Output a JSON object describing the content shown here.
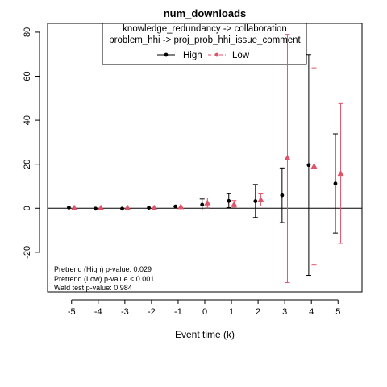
{
  "chart_data": {
    "type": "scatter",
    "title": "num_downloads",
    "xlabel": "Event time (k)",
    "ylabel": "",
    "xlim": [
      -5.9,
      5.9
    ],
    "ylim": [
      -38,
      84
    ],
    "x_ticks": [
      "-5",
      "-4",
      "-3",
      "-2",
      "-1",
      "0",
      "1",
      "2",
      "3",
      "4",
      "5"
    ],
    "y_ticks": [
      "-20",
      "0",
      "20",
      "40",
      "60",
      "80"
    ],
    "reference_line_y": 0,
    "legend": {
      "position": "top",
      "header_line1": "knowledge_redundancy -> collaboration",
      "header_line2": "problem_hhi -> proj_prob_hhi_issue_comment",
      "entries": [
        {
          "label": "High",
          "color": "#000000",
          "marker": "circle"
        },
        {
          "label": "Low",
          "color": "#DF536B",
          "marker": "triangle"
        }
      ]
    },
    "series": [
      {
        "name": "High",
        "color": "#000000",
        "marker": "circle",
        "points": [
          {
            "x": -5,
            "y": 0.3,
            "lo": 0.3,
            "hi": 0.3
          },
          {
            "x": -4,
            "y": -0.2,
            "lo": -0.2,
            "hi": -0.2
          },
          {
            "x": -3,
            "y": -0.2,
            "lo": -0.2,
            "hi": -0.2
          },
          {
            "x": -2,
            "y": 0.2,
            "lo": 0.2,
            "hi": 0.2
          },
          {
            "x": -1,
            "y": 0.8,
            "lo": 0.8,
            "hi": 0.8
          },
          {
            "x": 0,
            "y": 1.6,
            "lo": -0.8,
            "hi": 4.2
          },
          {
            "x": 1,
            "y": 3.3,
            "lo": 0.3,
            "hi": 6.6
          },
          {
            "x": 2,
            "y": 3.2,
            "lo": -4.2,
            "hi": 10.8
          },
          {
            "x": 3,
            "y": 5.9,
            "lo": -6.5,
            "hi": 18.3
          },
          {
            "x": 4,
            "y": 19.6,
            "lo": -30.5,
            "hi": 69.8
          },
          {
            "x": 5,
            "y": 11.2,
            "lo": -11.3,
            "hi": 33.8
          }
        ]
      },
      {
        "name": "Low",
        "color": "#DF536B",
        "marker": "triangle",
        "points": [
          {
            "x": -5,
            "y": 0.2,
            "lo": 0.2,
            "hi": 0.2
          },
          {
            "x": -4,
            "y": 0.2,
            "lo": 0.2,
            "hi": 0.2
          },
          {
            "x": -3,
            "y": 0.2,
            "lo": 0.2,
            "hi": 0.2
          },
          {
            "x": -2,
            "y": 0.2,
            "lo": 0.2,
            "hi": 0.2
          },
          {
            "x": -1,
            "y": 0.7,
            "lo": 0.7,
            "hi": 0.7
          },
          {
            "x": 0,
            "y": 2.4,
            "lo": 0.2,
            "hi": 4.7
          },
          {
            "x": 1,
            "y": 1.8,
            "lo": 0.5,
            "hi": 3.5
          },
          {
            "x": 2,
            "y": 3.9,
            "lo": 1.0,
            "hi": 6.5
          },
          {
            "x": 3,
            "y": 22.9,
            "lo": -33.8,
            "hi": 79.0
          },
          {
            "x": 4,
            "y": 19.1,
            "lo": -25.8,
            "hi": 63.8
          },
          {
            "x": 5,
            "y": 15.8,
            "lo": -16.0,
            "hi": 47.6
          }
        ]
      }
    ],
    "annotations": [
      "Pretrend (High) p-value: 0.029",
      "Pretrend (Low) p-value < 0.001",
      "Wald test p-value: 0.984"
    ]
  }
}
